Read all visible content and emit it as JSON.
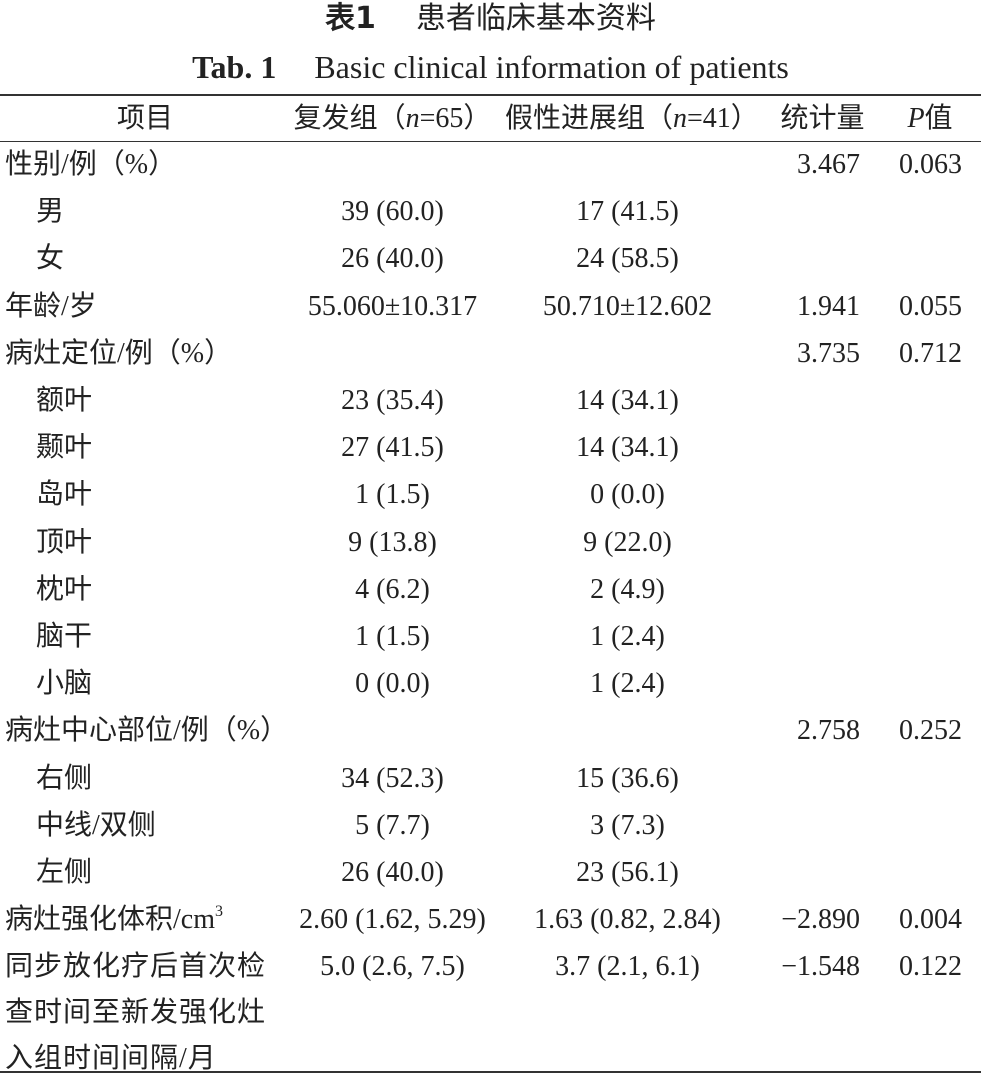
{
  "caption": {
    "cn_label": "表1",
    "cn_title": "患者临床基本资料",
    "en_label": "Tab. 1",
    "en_title": "Basic clinical information of patients"
  },
  "table": {
    "header": [
      [
        {
          "text": "项目"
        }
      ],
      [
        {
          "text": "复发组（"
        },
        {
          "text": "n",
          "italic": true
        },
        {
          "text": "=65）"
        }
      ],
      [
        {
          "text": "假性进展组（"
        },
        {
          "text": "n",
          "italic": true
        },
        {
          "text": "=41）"
        }
      ],
      [
        {
          "text": "统计量"
        }
      ],
      [
        {
          "text": "P",
          "italic": true
        },
        {
          "text": "值"
        }
      ]
    ],
    "rows": [
      {
        "label": [
          "性别/例（%）"
        ],
        "cells": [
          "",
          "",
          "3.467",
          "0.063"
        ]
      },
      {
        "label": [
          "男"
        ],
        "indent": true,
        "cells": [
          "39 (60.0)",
          "17 (41.5)",
          "",
          ""
        ]
      },
      {
        "label": [
          "女"
        ],
        "indent": true,
        "cells": [
          "26 (40.0)",
          "24 (58.5)",
          "",
          ""
        ]
      },
      {
        "label": [
          "年龄/岁"
        ],
        "cells": [
          "55.060±10.317",
          "50.710±12.602",
          "1.941",
          "0.055"
        ]
      },
      {
        "label": [
          "病灶定位/例（%）"
        ],
        "cells": [
          "",
          "",
          "3.735",
          "0.712"
        ]
      },
      {
        "label": [
          "额叶"
        ],
        "indent": true,
        "cells": [
          "23 (35.4)",
          "14 (34.1)",
          "",
          ""
        ]
      },
      {
        "label": [
          "颞叶"
        ],
        "indent": true,
        "cells": [
          "27 (41.5)",
          "14 (34.1)",
          "",
          ""
        ]
      },
      {
        "label": [
          "岛叶"
        ],
        "indent": true,
        "cells": [
          "1 (1.5)",
          "0 (0.0)",
          "",
          ""
        ]
      },
      {
        "label": [
          "顶叶"
        ],
        "indent": true,
        "cells": [
          "9 (13.8)",
          "9 (22.0)",
          "",
          ""
        ]
      },
      {
        "label": [
          "枕叶"
        ],
        "indent": true,
        "cells": [
          "4 (6.2)",
          "2 (4.9)",
          "",
          ""
        ]
      },
      {
        "label": [
          "脑干"
        ],
        "indent": true,
        "cells": [
          "1 (1.5)",
          "1 (2.4)",
          "",
          ""
        ]
      },
      {
        "label": [
          "小脑"
        ],
        "indent": true,
        "cells": [
          "0 (0.0)",
          "1 (2.4)",
          "",
          ""
        ]
      },
      {
        "label": [
          "病灶中心部位/例（%）"
        ],
        "cells": [
          "",
          "",
          "2.758",
          "0.252"
        ]
      },
      {
        "label": [
          "右侧"
        ],
        "indent": true,
        "cells": [
          "34 (52.3)",
          "15 (36.6)",
          "",
          ""
        ]
      },
      {
        "label": [
          "中线/双侧"
        ],
        "indent": true,
        "cells": [
          "5 (7.7)",
          "3 (7.3)",
          "",
          ""
        ]
      },
      {
        "label": [
          "左侧"
        ],
        "indent": true,
        "cells": [
          "26 (40.0)",
          "23 (56.1)",
          "",
          ""
        ]
      },
      {
        "label": [
          "病灶强化体积/cm"
        ],
        "label_sup": "3",
        "cells": [
          "2.60 (1.62, 5.29)",
          "1.63 (0.82, 2.84)",
          "−2.890",
          "0.004"
        ]
      },
      {
        "label": [
          "同步放化疗后首次检",
          "查时间至新发强化灶",
          "入组时间间隔/月"
        ],
        "cells": [
          "5.0 (2.6, 7.5)",
          "3.7 (2.1, 6.1)",
          "−1.548",
          "0.122"
        ]
      }
    ]
  }
}
